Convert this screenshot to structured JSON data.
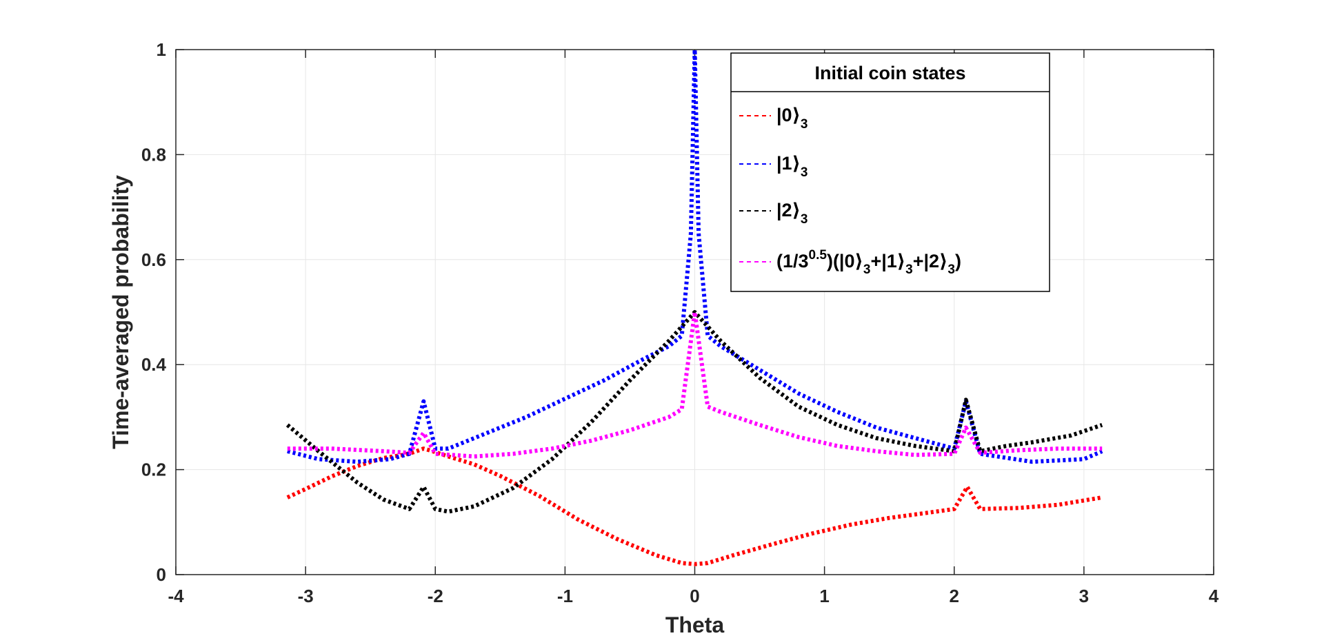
{
  "chart_data": {
    "type": "line",
    "xlabel": "Theta",
    "ylabel": "Time-averaged probability",
    "xlim": [
      -4,
      4
    ],
    "ylim": [
      0,
      1
    ],
    "xticks": [
      -4,
      -3,
      -2,
      -1,
      0,
      1,
      2,
      3,
      4
    ],
    "xtick_labels": [
      "-4",
      "-3",
      "-2",
      "-1",
      "0",
      "1",
      "2",
      "3",
      "4"
    ],
    "yticks": [
      0,
      0.2,
      0.4,
      0.6,
      0.8,
      1
    ],
    "ytick_labels": [
      "0",
      "0.2",
      "0.4",
      "0.6",
      "0.8",
      "1"
    ],
    "grid": true,
    "legend": {
      "title": "Initial coin states",
      "placement": "top-right"
    },
    "series": [
      {
        "name": "|0⟩3",
        "label_main": "|0",
        "label_sub": "3",
        "color": "#ff0000",
        "style": "dotted",
        "x": [
          -3.14,
          -3.0,
          -2.8,
          -2.6,
          -2.4,
          -2.25,
          -2.17,
          -2.09,
          -2.02,
          -1.9,
          -1.7,
          -1.5,
          -1.2,
          -0.9,
          -0.6,
          -0.3,
          -0.1,
          0.0,
          0.1,
          0.3,
          0.6,
          0.9,
          1.2,
          1.5,
          1.8,
          2.0,
          2.1,
          2.2,
          2.5,
          2.8,
          3.14
        ],
        "y": [
          0.147,
          0.163,
          0.187,
          0.207,
          0.222,
          0.228,
          0.233,
          0.24,
          0.235,
          0.225,
          0.21,
          0.188,
          0.15,
          0.105,
          0.068,
          0.037,
          0.022,
          0.02,
          0.022,
          0.037,
          0.058,
          0.078,
          0.095,
          0.108,
          0.118,
          0.125,
          0.167,
          0.125,
          0.127,
          0.133,
          0.147
        ]
      },
      {
        "name": "|1⟩3",
        "label_main": "|1",
        "label_sub": "3",
        "color": "#0000ff",
        "style": "dotted",
        "x": [
          -3.14,
          -2.9,
          -2.6,
          -2.35,
          -2.2,
          -2.09,
          -2.0,
          -1.9,
          -1.6,
          -1.3,
          -1.0,
          -0.7,
          -0.4,
          -0.2,
          -0.1,
          -0.03,
          0.0,
          0.03,
          0.1,
          0.2,
          0.5,
          0.8,
          1.1,
          1.4,
          1.7,
          2.0,
          2.09,
          2.2,
          2.6,
          3.0,
          3.14
        ],
        "y": [
          0.235,
          0.22,
          0.215,
          0.22,
          0.23,
          0.33,
          0.24,
          0.24,
          0.27,
          0.3,
          0.335,
          0.37,
          0.41,
          0.435,
          0.455,
          0.65,
          1.0,
          0.65,
          0.455,
          0.435,
          0.39,
          0.345,
          0.31,
          0.28,
          0.26,
          0.24,
          0.33,
          0.23,
          0.215,
          0.22,
          0.235
        ]
      },
      {
        "name": "|2⟩3",
        "label_main": "|2",
        "label_sub": "3",
        "color": "#000000",
        "style": "dotted",
        "x": [
          -3.14,
          -2.9,
          -2.6,
          -2.4,
          -2.2,
          -2.09,
          -2.0,
          -1.9,
          -1.7,
          -1.4,
          -1.1,
          -0.8,
          -0.5,
          -0.2,
          0.0,
          0.2,
          0.5,
          0.8,
          1.1,
          1.4,
          1.7,
          2.0,
          2.09,
          2.2,
          2.4,
          2.6,
          2.9,
          3.14
        ],
        "y": [
          0.285,
          0.235,
          0.175,
          0.143,
          0.125,
          0.167,
          0.125,
          0.12,
          0.13,
          0.165,
          0.22,
          0.29,
          0.37,
          0.445,
          0.5,
          0.445,
          0.375,
          0.32,
          0.285,
          0.26,
          0.245,
          0.235,
          0.333,
          0.235,
          0.245,
          0.252,
          0.265,
          0.285
        ]
      },
      {
        "name": "(1/3^0.5)(|0⟩3+|1⟩3+|2⟩3)",
        "label_main": "(1/3",
        "label_sup": "0.5",
        "label_tail": ")(|0⟩",
        "label_sub": "3",
        "color": "#ff00ff",
        "style": "dotted",
        "x": [
          -3.14,
          -2.8,
          -2.4,
          -2.2,
          -2.09,
          -2.0,
          -1.7,
          -1.4,
          -1.1,
          -0.8,
          -0.5,
          -0.2,
          -0.1,
          0.0,
          0.1,
          0.2,
          0.5,
          0.8,
          1.1,
          1.4,
          1.7,
          2.0,
          2.09,
          2.2,
          2.5,
          2.8,
          3.14
        ],
        "y": [
          0.24,
          0.24,
          0.235,
          0.232,
          0.27,
          0.23,
          0.225,
          0.23,
          0.24,
          0.255,
          0.275,
          0.3,
          0.315,
          0.5,
          0.32,
          0.31,
          0.285,
          0.262,
          0.245,
          0.235,
          0.228,
          0.23,
          0.28,
          0.232,
          0.237,
          0.24,
          0.24
        ]
      }
    ]
  }
}
